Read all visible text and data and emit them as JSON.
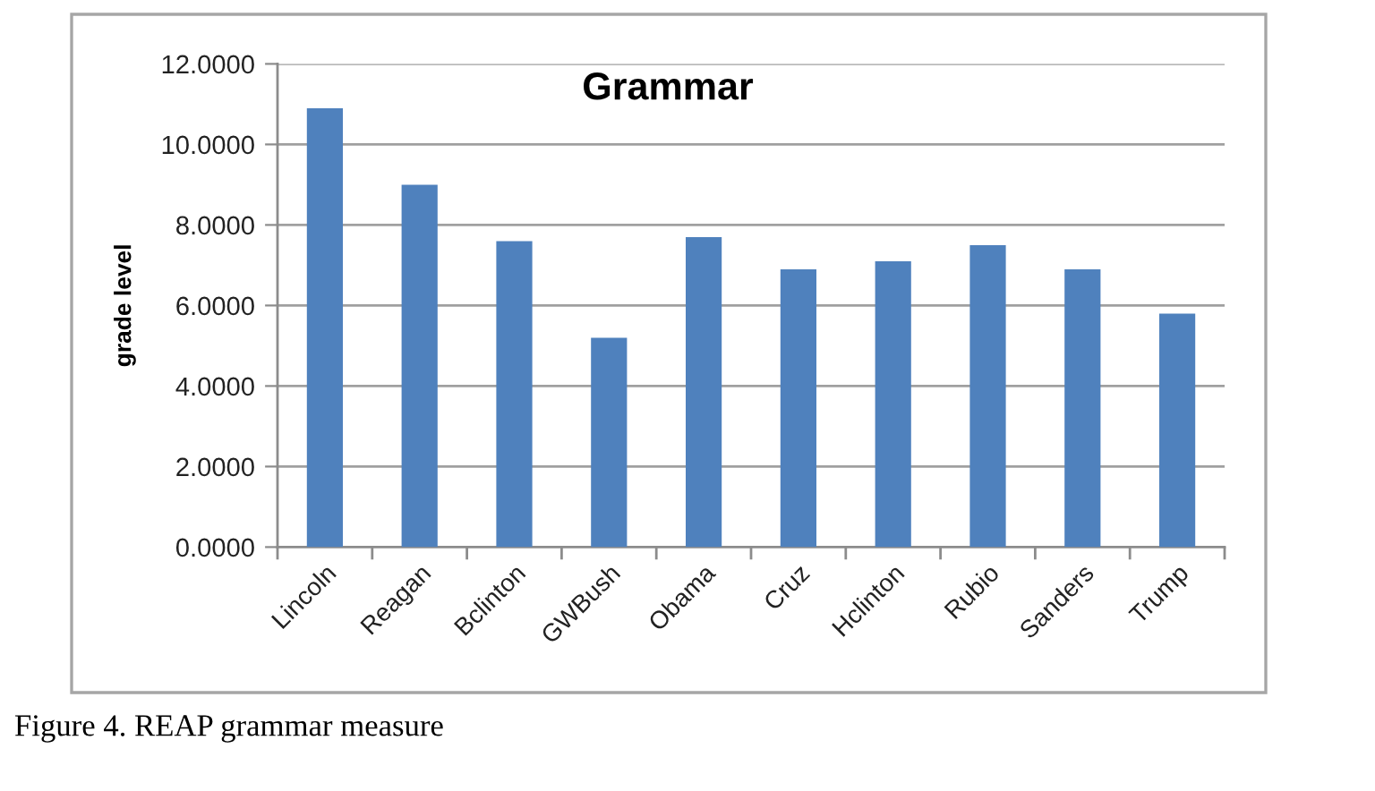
{
  "chart_data": {
    "type": "bar",
    "title": "Grammar",
    "ylabel": "grade level",
    "categories": [
      "Lincoln",
      "Reagan",
      "Bclinton",
      "GWBush",
      "Obama",
      "Cruz",
      "Hclinton",
      "Rubio",
      "Sanders",
      "Trump"
    ],
    "values": [
      10.9,
      9.0,
      7.6,
      5.2,
      7.7,
      6.9,
      7.1,
      7.5,
      6.9,
      5.8
    ],
    "color": "#4f81bd",
    "ylim": [
      0,
      12
    ],
    "yticks": [
      {
        "value": 0,
        "label": "0.0000"
      },
      {
        "value": 2,
        "label": "2.0000"
      },
      {
        "value": 4,
        "label": "4.0000"
      },
      {
        "value": 6,
        "label": "6.0000"
      },
      {
        "value": 8,
        "label": "8.0000"
      },
      {
        "value": 10,
        "label": "10.0000"
      },
      {
        "value": 12,
        "label": "12.0000"
      }
    ],
    "grid": "y",
    "legend": false,
    "annotations": [
      "Figure 4. REAP grammar measure"
    ]
  }
}
